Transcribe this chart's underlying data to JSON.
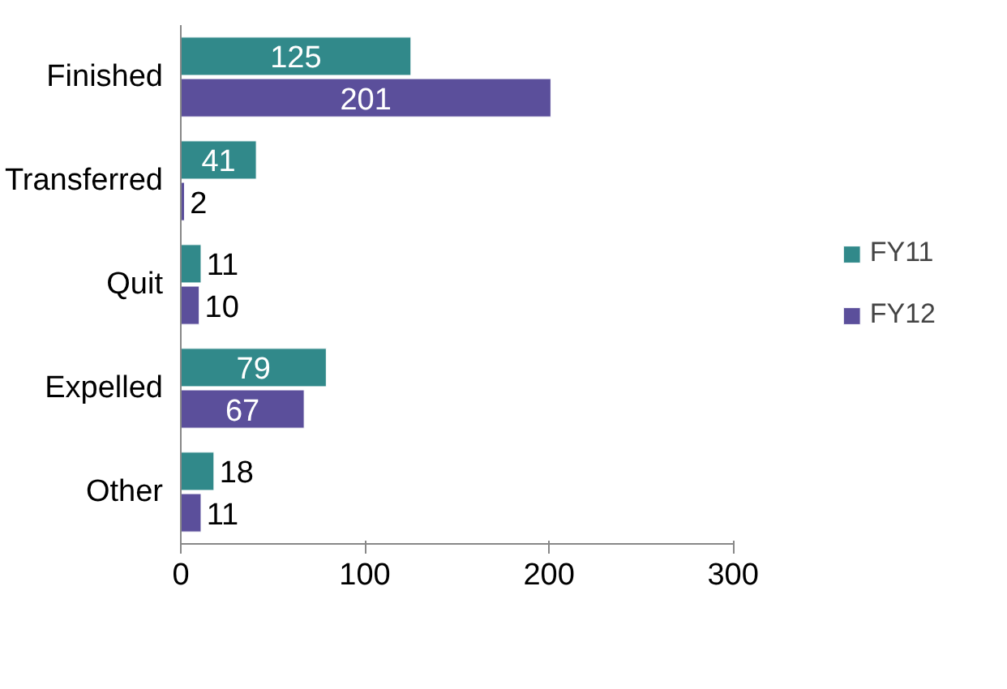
{
  "chart_data": {
    "type": "bar",
    "orientation": "horizontal",
    "categories": [
      "Finished",
      "Transferred",
      "Quit",
      "Expelled",
      "Other"
    ],
    "series": [
      {
        "name": "FY11",
        "color": "#31898a",
        "values": [
          125,
          41,
          11,
          79,
          18
        ]
      },
      {
        "name": "FY12",
        "color": "#5b4f9b",
        "values": [
          201,
          2,
          10,
          67,
          11
        ]
      }
    ],
    "xlim": [
      0,
      300
    ],
    "xticks": [
      0,
      100,
      200,
      300
    ],
    "grid": false,
    "legend": "right",
    "data_labels": true
  }
}
